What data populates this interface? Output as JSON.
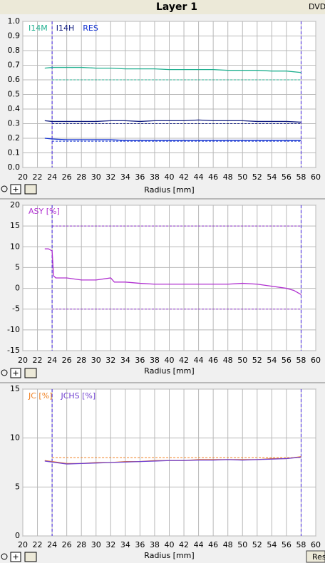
{
  "header": {
    "title": "Layer 1",
    "tab": "DVD",
    "button": "Res"
  },
  "chart_data": [
    {
      "type": "line",
      "xlabel": "Radius [mm]",
      "x": [
        23,
        24,
        26,
        28,
        30,
        32,
        34,
        36,
        38,
        40,
        42,
        44,
        46,
        48,
        50,
        52,
        54,
        56,
        58
      ],
      "series": [
        {
          "name": "I14M",
          "color": "#20b090",
          "values": [
            0.68,
            0.685,
            0.685,
            0.685,
            0.68,
            0.68,
            0.675,
            0.675,
            0.675,
            0.67,
            0.67,
            0.67,
            0.67,
            0.665,
            0.665,
            0.665,
            0.66,
            0.66,
            0.65
          ]
        },
        {
          "name": "I14H",
          "color": "#101c80",
          "values": [
            0.32,
            0.315,
            0.315,
            0.315,
            0.315,
            0.32,
            0.32,
            0.315,
            0.32,
            0.32,
            0.32,
            0.325,
            0.32,
            0.32,
            0.32,
            0.315,
            0.315,
            0.315,
            0.31
          ]
        },
        {
          "name": "RES",
          "color": "#1030d0",
          "values": [
            0.2,
            0.195,
            0.19,
            0.19,
            0.19,
            0.19,
            0.185,
            0.185,
            0.185,
            0.185,
            0.185,
            0.185,
            0.185,
            0.185,
            0.185,
            0.185,
            0.185,
            0.185,
            0.185
          ]
        }
      ],
      "ref_lines": [
        {
          "value": 0.6,
          "color": "#20b090"
        },
        {
          "value": 0.3,
          "color": "#101c80"
        },
        {
          "value": 0.18,
          "color": "#1030d0"
        }
      ],
      "vlines": [
        24,
        58
      ],
      "vline_color": "#4020e0",
      "xlim": [
        20,
        60
      ],
      "xticks": [
        20,
        22,
        24,
        26,
        28,
        30,
        32,
        34,
        36,
        38,
        40,
        42,
        44,
        46,
        48,
        50,
        52,
        54,
        56,
        58,
        60
      ],
      "ylim": [
        0,
        1
      ],
      "yticks": [
        {
          "value": 0,
          "label": "0.0"
        },
        0.1,
        0.2,
        0.3,
        0.4,
        0.5,
        0.6,
        0.7,
        0.8,
        0.9,
        {
          "value": 1,
          "label": "1.0"
        }
      ],
      "grid": true
    },
    {
      "type": "line",
      "xlabel": "Radius [mm]",
      "x": [
        23,
        23.5,
        24,
        24.2,
        24.5,
        26,
        28,
        30,
        32,
        32.5,
        34,
        36,
        38,
        40,
        42,
        44,
        46,
        48,
        50,
        52,
        54,
        56,
        57,
        58
      ],
      "series": [
        {
          "name": "ASY [%]",
          "color": "#b030d0",
          "values": [
            9.5,
            9.5,
            9,
            3,
            2.5,
            2.5,
            2,
            2,
            2.5,
            1.5,
            1.5,
            1.2,
            1,
            1,
            1,
            1,
            1,
            1,
            1.2,
            1,
            0.5,
            0,
            -0.5,
            -1.5
          ]
        }
      ],
      "ref_lines": [
        {
          "value": 15,
          "color": "#9030d0"
        },
        {
          "value": -5,
          "color": "#9030d0"
        }
      ],
      "vlines": [
        24,
        58
      ],
      "vline_color": "#4020e0",
      "xlim": [
        20,
        60
      ],
      "xticks": [
        20,
        22,
        24,
        26,
        28,
        30,
        32,
        34,
        36,
        38,
        40,
        42,
        44,
        46,
        48,
        50,
        52,
        54,
        56,
        58,
        60
      ],
      "ylim": [
        -15,
        20
      ],
      "yticks": [
        -15,
        -10,
        -5,
        0,
        5,
        10,
        15,
        20
      ],
      "grid": true
    },
    {
      "type": "line",
      "xlabel": "Radius [mm]",
      "x": [
        23,
        24,
        26,
        28,
        30,
        32,
        34,
        36,
        38,
        40,
        42,
        44,
        46,
        48,
        50,
        52,
        54,
        56,
        58
      ],
      "series": [
        {
          "name": "JC [%]",
          "color": "#f08020",
          "values": [
            7.7,
            7.6,
            7.4,
            7.4,
            7.5,
            7.5,
            7.6,
            7.6,
            7.7,
            7.7,
            7.7,
            7.8,
            7.8,
            7.8,
            7.8,
            7.8,
            7.9,
            7.9,
            8.1
          ]
        },
        {
          "name": "JCHS [%]",
          "color": "#7040d0",
          "values": [
            7.65,
            7.55,
            7.35,
            7.4,
            7.45,
            7.5,
            7.55,
            7.6,
            7.65,
            7.7,
            7.7,
            7.75,
            7.75,
            7.8,
            7.75,
            7.8,
            7.85,
            7.9,
            8.05
          ]
        }
      ],
      "ref_lines": [
        {
          "value": 8,
          "color": "#f08020"
        }
      ],
      "vlines": [
        24,
        58
      ],
      "vline_color": "#4020e0",
      "xlim": [
        20,
        60
      ],
      "xticks": [
        20,
        22,
        24,
        26,
        28,
        30,
        32,
        34,
        36,
        38,
        40,
        42,
        44,
        46,
        48,
        50,
        52,
        54,
        56,
        58,
        60
      ],
      "ylim": [
        0,
        15
      ],
      "yticks": [
        0,
        5,
        10,
        15
      ],
      "grid": true
    }
  ]
}
